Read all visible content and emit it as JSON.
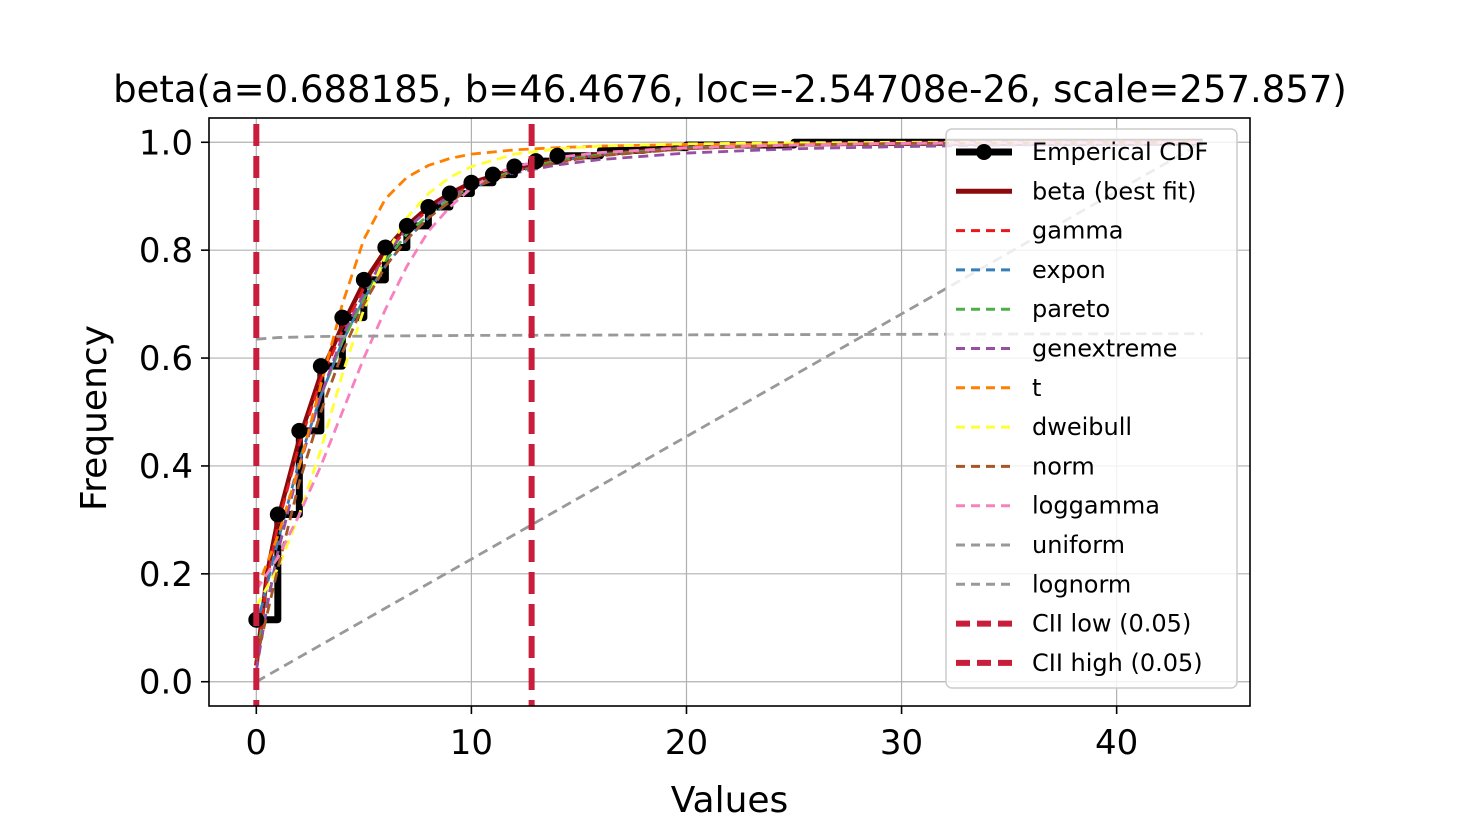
{
  "chart_data": {
    "type": "line",
    "title": "beta(a=0.688185, b=46.4676, loc=-2.54708e-26, scale=257.857)",
    "xlabel": "Values",
    "ylabel": "Frequency",
    "xlim": [
      -2.2,
      46.2
    ],
    "ylim": [
      -0.045,
      1.045
    ],
    "xticks": [
      0,
      10,
      20,
      30,
      40
    ],
    "yticks": [
      0.0,
      0.2,
      0.4,
      0.6,
      0.8,
      1.0
    ],
    "xtick_labels": [
      "0",
      "10",
      "20",
      "30",
      "40"
    ],
    "ytick_labels": [
      "0.0",
      "0.2",
      "0.4",
      "0.6",
      "0.8",
      "1.0"
    ],
    "grid": true,
    "legend_position": "right",
    "empirical": {
      "name": "Emperical CDF",
      "color": "#000000",
      "x": [
        0,
        1,
        2,
        3,
        4,
        5,
        6,
        7,
        8,
        9,
        10,
        11,
        12,
        13,
        14,
        16,
        18,
        20,
        25,
        30,
        35,
        40,
        44
      ],
      "y": [
        0.115,
        0.31,
        0.465,
        0.585,
        0.675,
        0.745,
        0.805,
        0.845,
        0.88,
        0.905,
        0.925,
        0.94,
        0.955,
        0.965,
        0.975,
        0.985,
        0.99,
        0.995,
        1.0,
        1.0,
        1.0,
        1.0,
        1.0
      ]
    },
    "series": [
      {
        "name": "beta (best fit)",
        "color": "#8b0a0a",
        "style": "solid",
        "x": [
          0,
          0.5,
          1,
          2,
          3,
          4,
          5,
          6,
          7,
          8,
          9,
          10,
          12,
          14,
          16,
          20,
          25,
          30,
          35,
          40,
          44
        ],
        "y": [
          0.03,
          0.2,
          0.3,
          0.45,
          0.57,
          0.66,
          0.74,
          0.8,
          0.845,
          0.88,
          0.905,
          0.925,
          0.95,
          0.968,
          0.978,
          0.99,
          0.996,
          0.998,
          0.999,
          1.0,
          1.0
        ]
      },
      {
        "name": "gamma",
        "color": "#e41a1c",
        "style": "dashed",
        "x": [
          0,
          0.5,
          1,
          2,
          3,
          4,
          5,
          6,
          7,
          8,
          9,
          10,
          12,
          14,
          16,
          20,
          25,
          30,
          35,
          40,
          44
        ],
        "y": [
          0.03,
          0.19,
          0.29,
          0.44,
          0.56,
          0.65,
          0.73,
          0.79,
          0.84,
          0.875,
          0.9,
          0.92,
          0.947,
          0.964,
          0.976,
          0.988,
          0.995,
          0.998,
          0.999,
          1.0,
          1.0
        ]
      },
      {
        "name": "expon",
        "color": "#377eb8",
        "style": "dashed",
        "x": [
          0,
          1,
          2,
          3,
          4,
          5,
          6,
          7,
          8,
          9,
          10,
          12,
          14,
          16,
          20,
          25,
          30,
          35,
          40,
          44
        ],
        "y": [
          0.1,
          0.26,
          0.41,
          0.53,
          0.63,
          0.71,
          0.77,
          0.82,
          0.86,
          0.89,
          0.915,
          0.945,
          0.965,
          0.977,
          0.99,
          0.996,
          0.998,
          0.999,
          1.0,
          1.0
        ]
      },
      {
        "name": "pareto",
        "color": "#4daf4a",
        "style": "dashed",
        "x": [
          0,
          1,
          2,
          3,
          4,
          5,
          6,
          7,
          8,
          9,
          10,
          12,
          14,
          16,
          20,
          25,
          30,
          35,
          40,
          44
        ],
        "y": [
          0.05,
          0.24,
          0.4,
          0.53,
          0.63,
          0.71,
          0.78,
          0.83,
          0.865,
          0.895,
          0.918,
          0.948,
          0.966,
          0.977,
          0.988,
          0.995,
          0.997,
          0.998,
          0.999,
          1.0
        ]
      },
      {
        "name": "genextreme",
        "color": "#984ea3",
        "style": "dashed",
        "x": [
          0,
          0.5,
          1,
          2,
          3,
          4,
          5,
          6,
          7,
          8,
          9,
          10,
          12,
          14,
          16,
          20,
          25,
          30,
          35,
          40,
          44
        ],
        "y": [
          0.02,
          0.14,
          0.24,
          0.4,
          0.53,
          0.64,
          0.72,
          0.79,
          0.84,
          0.875,
          0.9,
          0.918,
          0.943,
          0.958,
          0.968,
          0.98,
          0.988,
          0.992,
          0.995,
          0.996,
          0.997
        ]
      },
      {
        "name": "t",
        "color": "#ff7f00",
        "style": "dashed",
        "x": [
          0,
          1,
          2,
          3,
          4,
          5,
          6,
          7,
          8,
          9,
          10,
          12,
          14,
          16,
          20,
          25,
          30,
          35,
          40,
          44
        ],
        "y": [
          0.17,
          0.27,
          0.4,
          0.55,
          0.7,
          0.82,
          0.895,
          0.935,
          0.957,
          0.97,
          0.978,
          0.986,
          0.99,
          0.993,
          0.996,
          0.997,
          0.998,
          0.999,
          0.999,
          1.0
        ]
      },
      {
        "name": "dweibull",
        "color": "#ffff33",
        "style": "dashed",
        "x": [
          0,
          1,
          2,
          3,
          4,
          5,
          6,
          7,
          8,
          9,
          10,
          12,
          14,
          16,
          20,
          25,
          30,
          35,
          40,
          44
        ],
        "y": [
          0.14,
          0.21,
          0.31,
          0.43,
          0.57,
          0.69,
          0.79,
          0.86,
          0.905,
          0.935,
          0.955,
          0.978,
          0.988,
          0.993,
          0.997,
          0.999,
          1.0,
          1.0,
          1.0,
          1.0
        ]
      },
      {
        "name": "norm",
        "color": "#a65628",
        "style": "dashed",
        "x": [
          0,
          1,
          2,
          3,
          4,
          5,
          6,
          7,
          8,
          9,
          10,
          12,
          14,
          16,
          20,
          25,
          30,
          35,
          40,
          44
        ],
        "y": [
          0.04,
          0.21,
          0.37,
          0.5,
          0.61,
          0.7,
          0.77,
          0.82,
          0.86,
          0.89,
          0.915,
          0.945,
          0.963,
          0.975,
          0.988,
          0.995,
          0.998,
          0.999,
          1.0,
          1.0
        ]
      },
      {
        "name": "loggamma",
        "color": "#f781bf",
        "style": "dashed",
        "x": [
          0,
          1,
          2,
          3,
          4,
          5,
          6,
          7,
          8,
          9,
          10,
          11,
          12,
          14,
          16,
          20,
          25,
          30,
          35,
          40,
          44
        ],
        "y": [
          0.17,
          0.23,
          0.31,
          0.4,
          0.5,
          0.6,
          0.69,
          0.77,
          0.835,
          0.88,
          0.915,
          0.94,
          0.955,
          0.972,
          0.981,
          0.99,
          0.995,
          0.998,
          0.999,
          0.999,
          1.0
        ]
      },
      {
        "name": "uniform",
        "color": "#999999",
        "style": "dashed",
        "x": [
          0,
          44
        ],
        "y": [
          0.0,
          1.0
        ]
      },
      {
        "name": "lognorm",
        "color": "#999999",
        "style": "dashed",
        "x": [
          0,
          1,
          3,
          10,
          20,
          30,
          40,
          44
        ],
        "y": [
          0.635,
          0.638,
          0.64,
          0.642,
          0.643,
          0.644,
          0.645,
          0.645
        ]
      }
    ],
    "vlines": [
      {
        "name": "CII low (0.05)",
        "x": 0.0,
        "color": "#c81e3c"
      },
      {
        "name": "CII high (0.05)",
        "x": 12.8,
        "color": "#c81e3c"
      }
    ]
  }
}
